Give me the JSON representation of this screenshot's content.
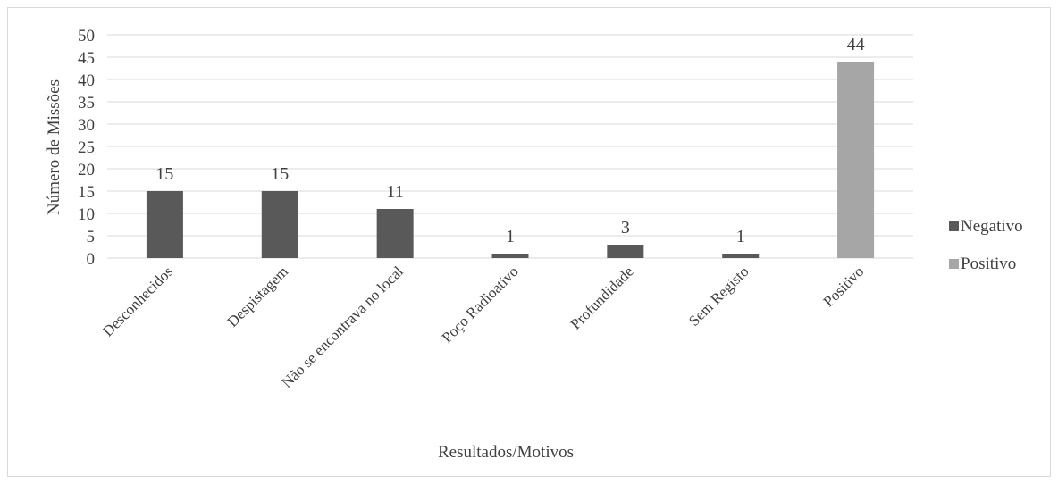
{
  "chart_data": {
    "type": "bar",
    "categories": [
      "Desconhecidos",
      "Despistagem",
      "Não se encontrava no local",
      "Poço Radioativo",
      "Profundidade",
      "Sem Registo",
      "Positivo"
    ],
    "series": [
      {
        "name": "Negativo",
        "values": [
          15,
          15,
          11,
          1,
          3,
          1,
          null
        ],
        "color": "#595959"
      },
      {
        "name": "Positivo",
        "values": [
          null,
          null,
          null,
          null,
          null,
          null,
          44
        ],
        "color": "#a6a6a6"
      }
    ],
    "xlabel": "Resultados/Motivos",
    "ylabel": "Número de Missões",
    "ylim": [
      0,
      50
    ],
    "yticks": [
      0,
      5,
      10,
      15,
      20,
      25,
      30,
      35,
      40,
      45,
      50
    ],
    "grid": true,
    "legend_position": "right"
  }
}
